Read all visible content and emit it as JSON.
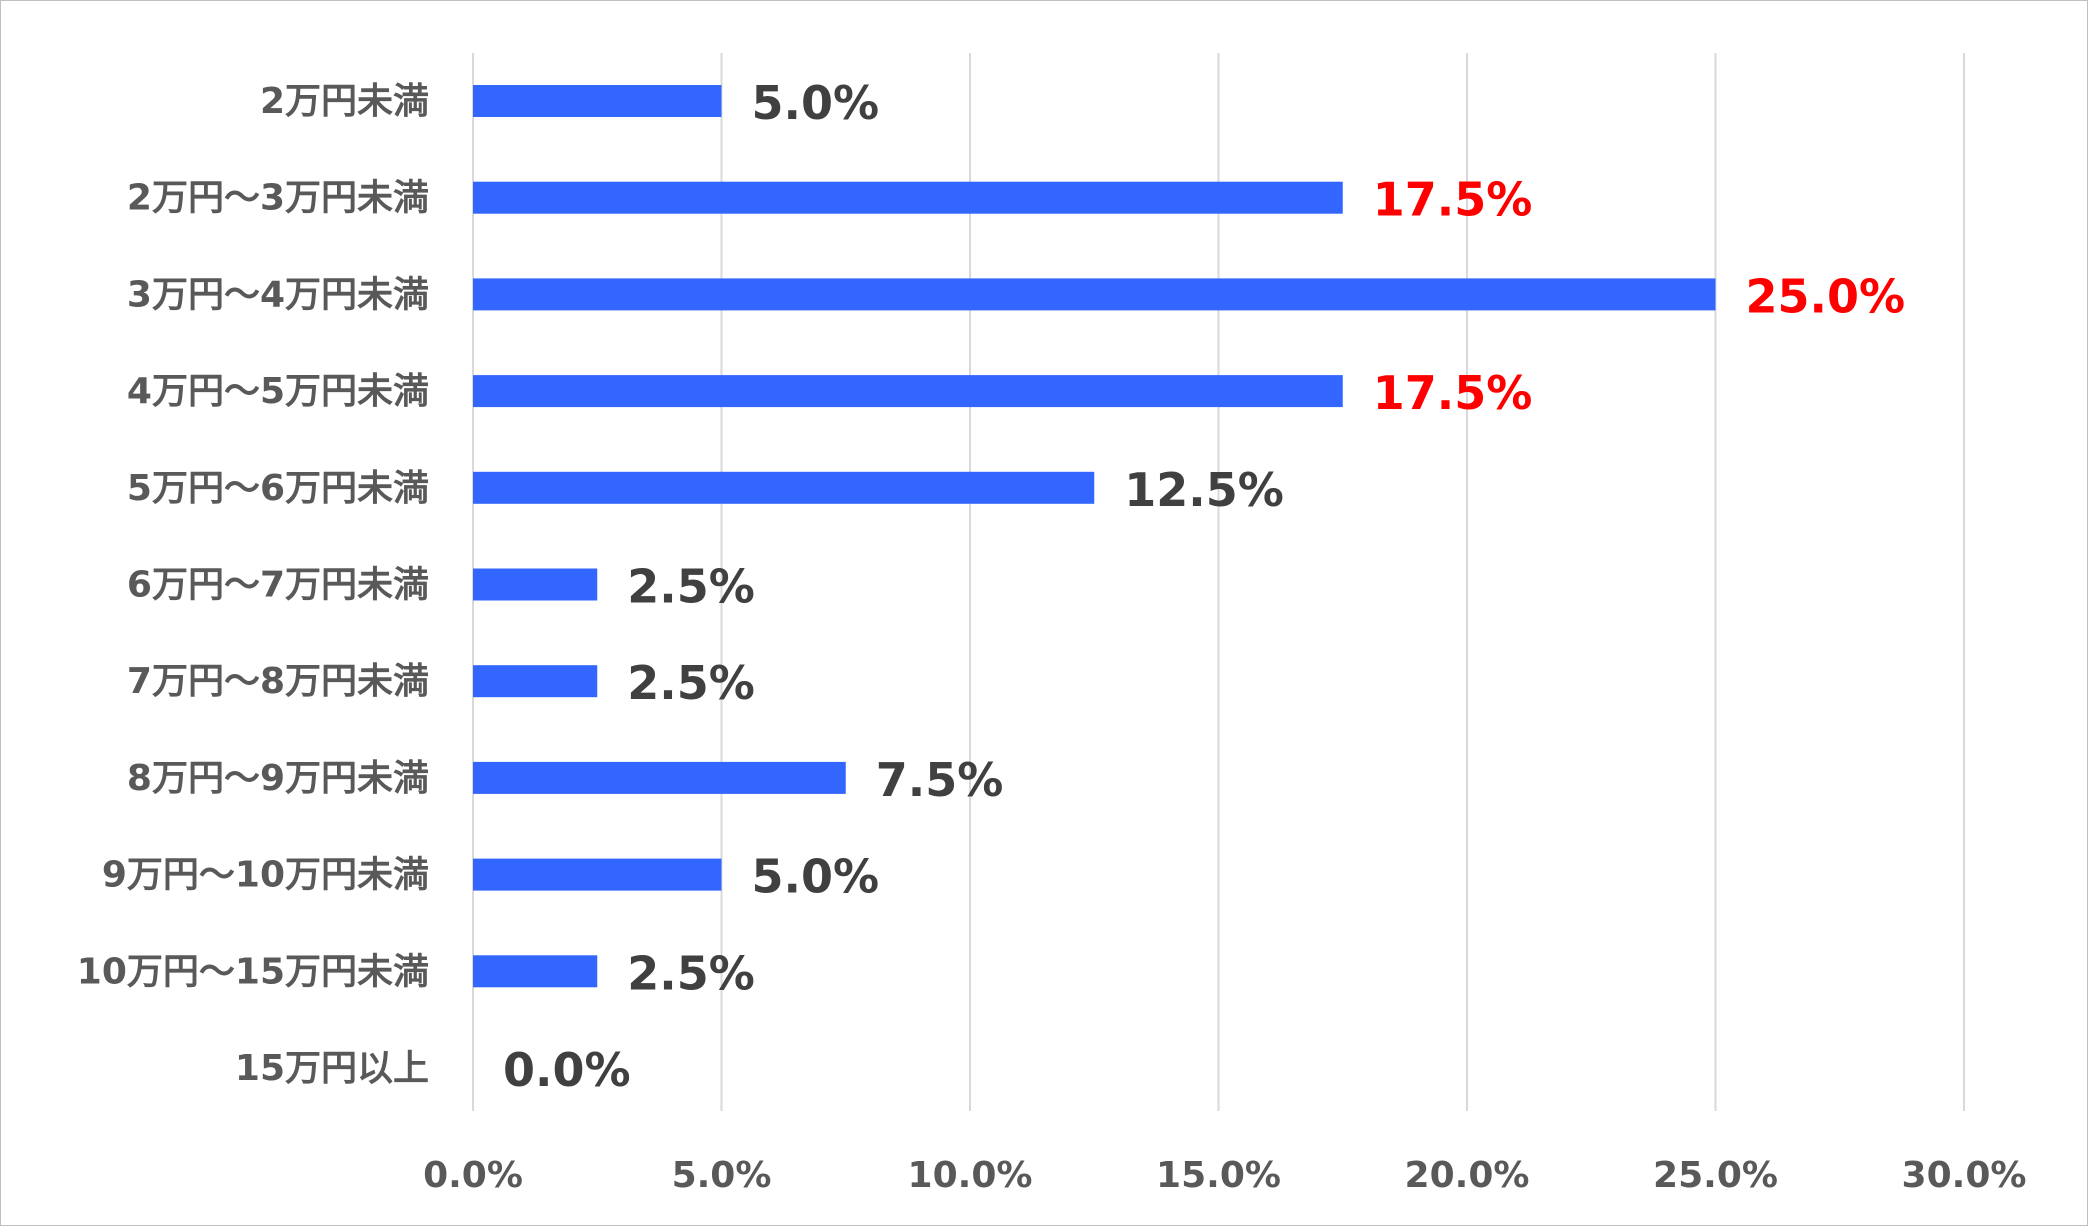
{
  "chart_data": {
    "type": "bar",
    "orientation": "horizontal",
    "categories": [
      "2万円未満",
      "2万円～3万円未満",
      "3万円～4万円未満",
      "4万円～5万円未満",
      "5万円～6万円未満",
      "6万円～7万円未満",
      "7万円～8万円未満",
      "8万円～9万円未満",
      "9万円～10万円未満",
      "10万円～15万円未満",
      "15万円以上"
    ],
    "values": [
      5.0,
      17.5,
      25.0,
      17.5,
      12.5,
      2.5,
      2.5,
      7.5,
      5.0,
      2.5,
      0.0
    ],
    "data_labels": [
      "5.0%",
      "17.5%",
      "25.0%",
      "17.5%",
      "12.5%",
      "2.5%",
      "2.5%",
      "7.5%",
      "5.0%",
      "2.5%",
      "0.0%"
    ],
    "highlighted": [
      false,
      true,
      true,
      true,
      false,
      false,
      false,
      false,
      false,
      false,
      false
    ],
    "xlim": [
      0,
      30
    ],
    "x_ticks": [
      0,
      5,
      10,
      15,
      20,
      25,
      30
    ],
    "x_tick_labels": [
      "0.0%",
      "5.0%",
      "10.0%",
      "15.0%",
      "20.0%",
      "25.0%",
      "30.0%"
    ],
    "title": "",
    "xlabel": "",
    "ylabel": "",
    "grid": "vertical",
    "legend": "none",
    "colors": {
      "bar": "#3366ff",
      "label": "#404040",
      "highlight_label": "#ff0000",
      "axis_text": "#595959",
      "grid": "#d9d9d9"
    }
  }
}
